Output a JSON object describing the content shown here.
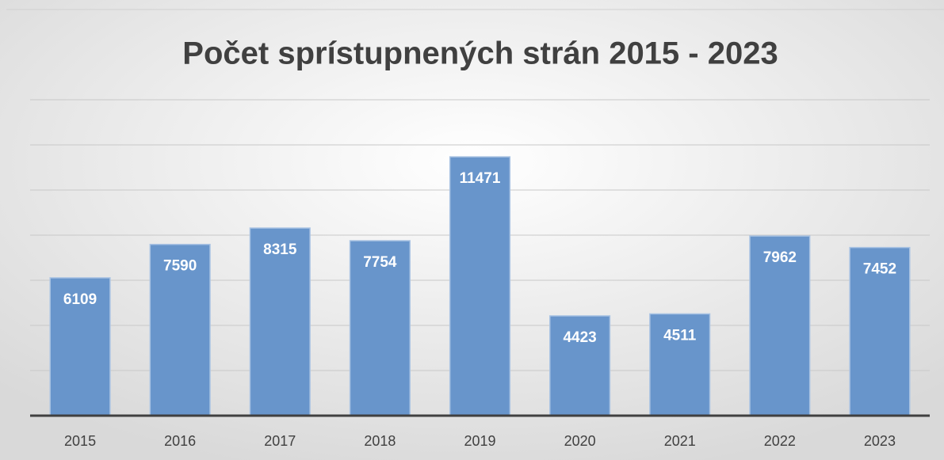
{
  "chart_data": {
    "type": "bar",
    "title": "Počet sprístupnených strán 2015 - 2023",
    "categories": [
      "2015",
      "2016",
      "2017",
      "2018",
      "2019",
      "2020",
      "2021",
      "2022",
      "2023"
    ],
    "values": [
      6109,
      7590,
      8315,
      7754,
      11471,
      4423,
      4511,
      7962,
      7452
    ],
    "color": "#6895cb",
    "ylim": [
      0,
      14000
    ],
    "yticks": [
      0,
      2000,
      4000,
      6000,
      8000,
      10000,
      12000,
      14000
    ],
    "grid": true
  }
}
